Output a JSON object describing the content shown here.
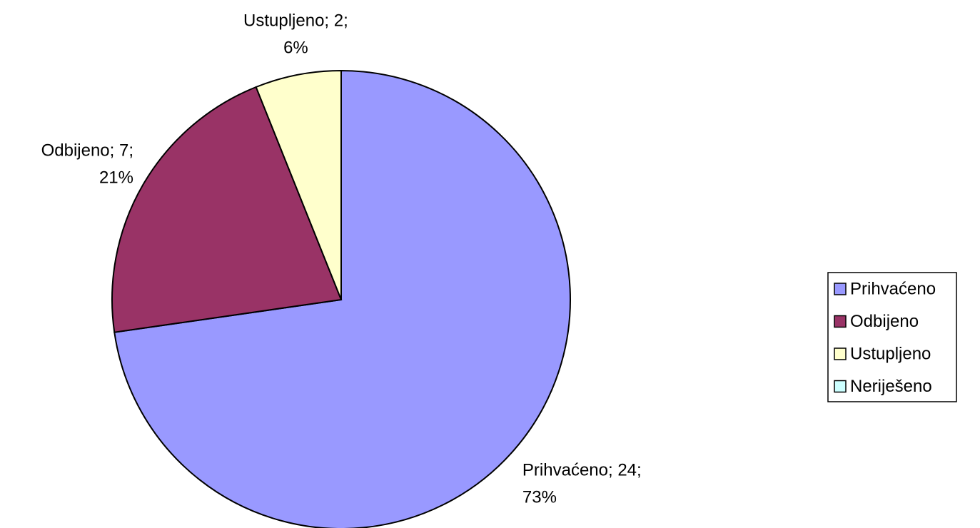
{
  "chart_data": {
    "type": "pie",
    "categories": [
      "Prihvaćeno",
      "Odbijeno",
      "Ustupljeno",
      "Neriješeno"
    ],
    "values": [
      24,
      7,
      2,
      0
    ],
    "value_labels": [
      [
        "Prihvaćeno; 24;",
        "73%"
      ],
      [
        "Odbijeno; 7;",
        "21%"
      ],
      [
        "Ustupljeno; 2;",
        "6%"
      ],
      null
    ],
    "colors": [
      "#9999ff",
      "#993366",
      "#ffffcc",
      "#ccffff"
    ],
    "legend": "right"
  }
}
